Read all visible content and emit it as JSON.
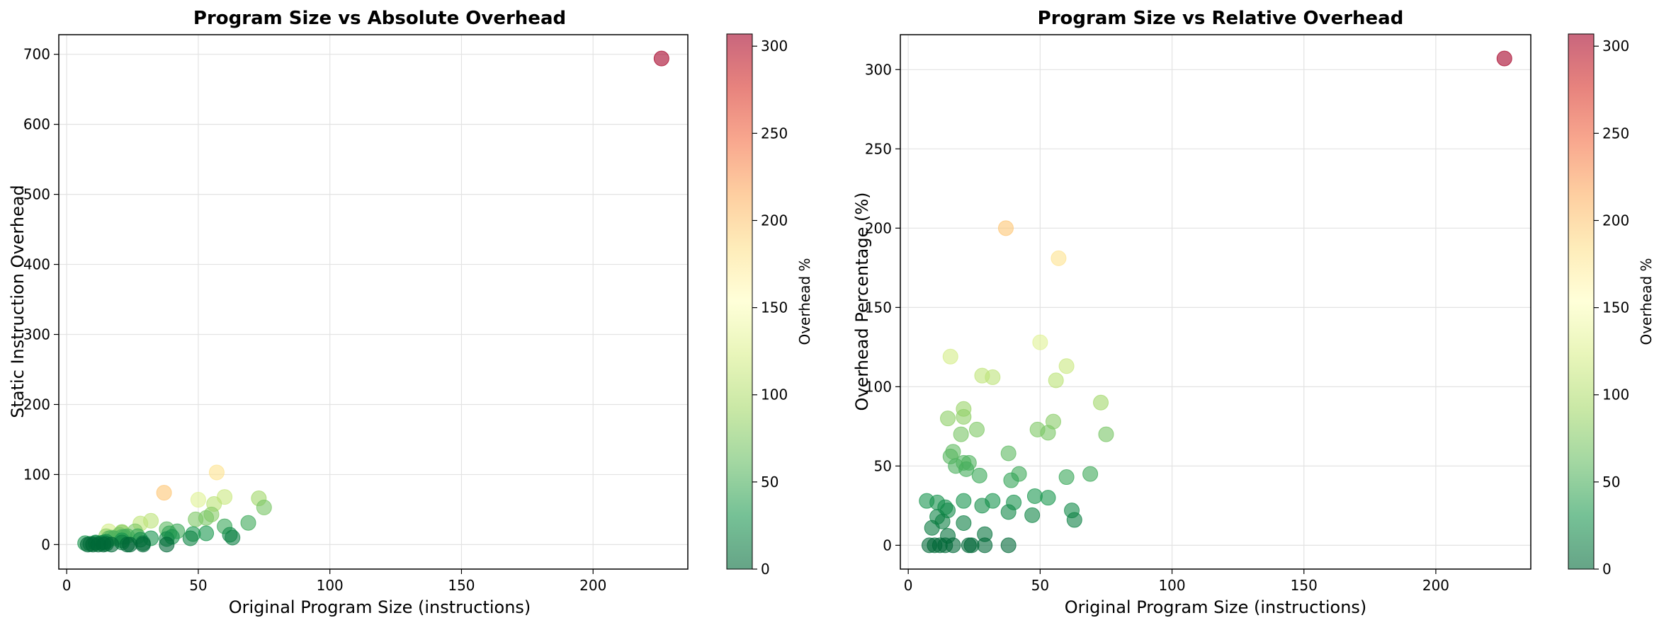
{
  "chart_data": [
    {
      "type": "scatter",
      "title": "Program Size vs Absolute Overhead",
      "xlabel": "Original Program Size (instructions)",
      "ylabel": "Static Instruction Overhead",
      "xlim": [
        -3,
        236
      ],
      "ylim": [
        -35,
        728
      ],
      "xticks": [
        0,
        50,
        100,
        150,
        200
      ],
      "yticks": [
        0,
        100,
        200,
        300,
        400,
        500,
        600,
        700
      ],
      "grid": true,
      "colorbar": {
        "label": "Overhead %",
        "range": [
          0,
          307
        ],
        "ticks": [
          0,
          50,
          100,
          150,
          200,
          250,
          300
        ],
        "colormap": "RdYlGn_r"
      },
      "points": [
        {
          "x": 226,
          "y": 694,
          "c": 307
        },
        {
          "x": 37,
          "y": 74,
          "c": 200
        },
        {
          "x": 57,
          "y": 103,
          "c": 181
        },
        {
          "x": 50,
          "y": 64,
          "c": 128
        },
        {
          "x": 16,
          "y": 19,
          "c": 119
        },
        {
          "x": 60,
          "y": 68,
          "c": 113
        },
        {
          "x": 28,
          "y": 30,
          "c": 107
        },
        {
          "x": 32,
          "y": 34,
          "c": 106
        },
        {
          "x": 56,
          "y": 58,
          "c": 104
        },
        {
          "x": 73,
          "y": 66,
          "c": 90
        },
        {
          "x": 21,
          "y": 18,
          "c": 86
        },
        {
          "x": 15,
          "y": 12,
          "c": 80
        },
        {
          "x": 21,
          "y": 17,
          "c": 81
        },
        {
          "x": 55,
          "y": 43,
          "c": 78
        },
        {
          "x": 26,
          "y": 19,
          "c": 73
        },
        {
          "x": 49,
          "y": 36,
          "c": 73
        },
        {
          "x": 53,
          "y": 38,
          "c": 71
        },
        {
          "x": 75,
          "y": 53,
          "c": 70
        },
        {
          "x": 20,
          "y": 14,
          "c": 70
        },
        {
          "x": 17,
          "y": 10,
          "c": 59
        },
        {
          "x": 16,
          "y": 9,
          "c": 56
        },
        {
          "x": 38,
          "y": 22,
          "c": 58
        },
        {
          "x": 18,
          "y": 9,
          "c": 50
        },
        {
          "x": 21,
          "y": 11,
          "c": 52
        },
        {
          "x": 23,
          "y": 12,
          "c": 52
        },
        {
          "x": 22,
          "y": 11,
          "c": 48
        },
        {
          "x": 42,
          "y": 19,
          "c": 45
        },
        {
          "x": 27,
          "y": 12,
          "c": 44
        },
        {
          "x": 39,
          "y": 16,
          "c": 41
        },
        {
          "x": 69,
          "y": 31,
          "c": 45
        },
        {
          "x": 60,
          "y": 26,
          "c": 43
        },
        {
          "x": 48,
          "y": 15,
          "c": 31
        },
        {
          "x": 53,
          "y": 16,
          "c": 30
        },
        {
          "x": 7,
          "y": 2,
          "c": 28
        },
        {
          "x": 21,
          "y": 6,
          "c": 28
        },
        {
          "x": 11,
          "y": 3,
          "c": 27
        },
        {
          "x": 32,
          "y": 9,
          "c": 28
        },
        {
          "x": 40,
          "y": 11,
          "c": 27
        },
        {
          "x": 14,
          "y": 3,
          "c": 24
        },
        {
          "x": 28,
          "y": 7,
          "c": 25
        },
        {
          "x": 15,
          "y": 4,
          "c": 22
        },
        {
          "x": 62,
          "y": 14,
          "c": 22
        },
        {
          "x": 11,
          "y": 2,
          "c": 18
        },
        {
          "x": 47,
          "y": 9,
          "c": 19
        },
        {
          "x": 38,
          "y": 8,
          "c": 21
        },
        {
          "x": 13,
          "y": 2,
          "c": 15
        },
        {
          "x": 63,
          "y": 10,
          "c": 16
        },
        {
          "x": 21,
          "y": 3,
          "c": 14
        },
        {
          "x": 9,
          "y": 1,
          "c": 11
        },
        {
          "x": 15,
          "y": 1,
          "c": 6
        },
        {
          "x": 29,
          "y": 2,
          "c": 7
        },
        {
          "x": 8,
          "y": 0,
          "c": 0
        },
        {
          "x": 10,
          "y": 0,
          "c": 0
        },
        {
          "x": 12,
          "y": 0,
          "c": 0
        },
        {
          "x": 14,
          "y": 0,
          "c": 0
        },
        {
          "x": 17,
          "y": 0,
          "c": 0
        },
        {
          "x": 23,
          "y": 0,
          "c": 0
        },
        {
          "x": 24,
          "y": 0,
          "c": 0
        },
        {
          "x": 29,
          "y": 0,
          "c": 0
        },
        {
          "x": 38,
          "y": 0,
          "c": 0
        }
      ]
    },
    {
      "type": "scatter",
      "title": "Program Size vs Relative Overhead",
      "xlabel": "Original Program Size (instructions)",
      "ylabel": "Overhead Percentage (%)",
      "xlim": [
        -3,
        236
      ],
      "ylim": [
        -15,
        322
      ],
      "xticks": [
        0,
        50,
        100,
        150,
        200
      ],
      "yticks": [
        0,
        50,
        100,
        150,
        200,
        250,
        300
      ],
      "grid": true,
      "colorbar": {
        "label": "Overhead %",
        "range": [
          0,
          307
        ],
        "ticks": [
          0,
          50,
          100,
          150,
          200,
          250,
          300
        ],
        "colormap": "RdYlGn_r"
      },
      "points": [
        {
          "x": 226,
          "y": 307,
          "c": 307
        },
        {
          "x": 37,
          "y": 200,
          "c": 200
        },
        {
          "x": 57,
          "y": 181,
          "c": 181
        },
        {
          "x": 50,
          "y": 128,
          "c": 128
        },
        {
          "x": 16,
          "y": 119,
          "c": 119
        },
        {
          "x": 60,
          "y": 113,
          "c": 113
        },
        {
          "x": 28,
          "y": 107,
          "c": 107
        },
        {
          "x": 32,
          "y": 106,
          "c": 106
        },
        {
          "x": 56,
          "y": 104,
          "c": 104
        },
        {
          "x": 73,
          "y": 90,
          "c": 90
        },
        {
          "x": 21,
          "y": 86,
          "c": 86
        },
        {
          "x": 15,
          "y": 80,
          "c": 80
        },
        {
          "x": 21,
          "y": 81,
          "c": 81
        },
        {
          "x": 55,
          "y": 78,
          "c": 78
        },
        {
          "x": 26,
          "y": 73,
          "c": 73
        },
        {
          "x": 49,
          "y": 73,
          "c": 73
        },
        {
          "x": 53,
          "y": 71,
          "c": 71
        },
        {
          "x": 75,
          "y": 70,
          "c": 70
        },
        {
          "x": 20,
          "y": 70,
          "c": 70
        },
        {
          "x": 17,
          "y": 59,
          "c": 59
        },
        {
          "x": 16,
          "y": 56,
          "c": 56
        },
        {
          "x": 38,
          "y": 58,
          "c": 58
        },
        {
          "x": 18,
          "y": 50,
          "c": 50
        },
        {
          "x": 21,
          "y": 52,
          "c": 52
        },
        {
          "x": 23,
          "y": 52,
          "c": 52
        },
        {
          "x": 22,
          "y": 48,
          "c": 48
        },
        {
          "x": 42,
          "y": 45,
          "c": 45
        },
        {
          "x": 27,
          "y": 44,
          "c": 44
        },
        {
          "x": 39,
          "y": 41,
          "c": 41
        },
        {
          "x": 69,
          "y": 45,
          "c": 45
        },
        {
          "x": 60,
          "y": 43,
          "c": 43
        },
        {
          "x": 48,
          "y": 31,
          "c": 31
        },
        {
          "x": 53,
          "y": 30,
          "c": 30
        },
        {
          "x": 7,
          "y": 28,
          "c": 28
        },
        {
          "x": 21,
          "y": 28,
          "c": 28
        },
        {
          "x": 11,
          "y": 27,
          "c": 27
        },
        {
          "x": 32,
          "y": 28,
          "c": 28
        },
        {
          "x": 40,
          "y": 27,
          "c": 27
        },
        {
          "x": 14,
          "y": 24,
          "c": 24
        },
        {
          "x": 28,
          "y": 25,
          "c": 25
        },
        {
          "x": 15,
          "y": 22,
          "c": 22
        },
        {
          "x": 62,
          "y": 22,
          "c": 22
        },
        {
          "x": 11,
          "y": 18,
          "c": 18
        },
        {
          "x": 47,
          "y": 19,
          "c": 19
        },
        {
          "x": 38,
          "y": 21,
          "c": 21
        },
        {
          "x": 13,
          "y": 15,
          "c": 15
        },
        {
          "x": 63,
          "y": 16,
          "c": 16
        },
        {
          "x": 21,
          "y": 14,
          "c": 14
        },
        {
          "x": 9,
          "y": 11,
          "c": 11
        },
        {
          "x": 15,
          "y": 6,
          "c": 6
        },
        {
          "x": 29,
          "y": 7,
          "c": 7
        },
        {
          "x": 8,
          "y": 0,
          "c": 0
        },
        {
          "x": 10,
          "y": 0,
          "c": 0
        },
        {
          "x": 12,
          "y": 0,
          "c": 0
        },
        {
          "x": 14,
          "y": 0,
          "c": 0
        },
        {
          "x": 17,
          "y": 0,
          "c": 0
        },
        {
          "x": 23,
          "y": 0,
          "c": 0
        },
        {
          "x": 24,
          "y": 0,
          "c": 0
        },
        {
          "x": 29,
          "y": 0,
          "c": 0
        },
        {
          "x": 38,
          "y": 0,
          "c": 0
        }
      ]
    }
  ]
}
